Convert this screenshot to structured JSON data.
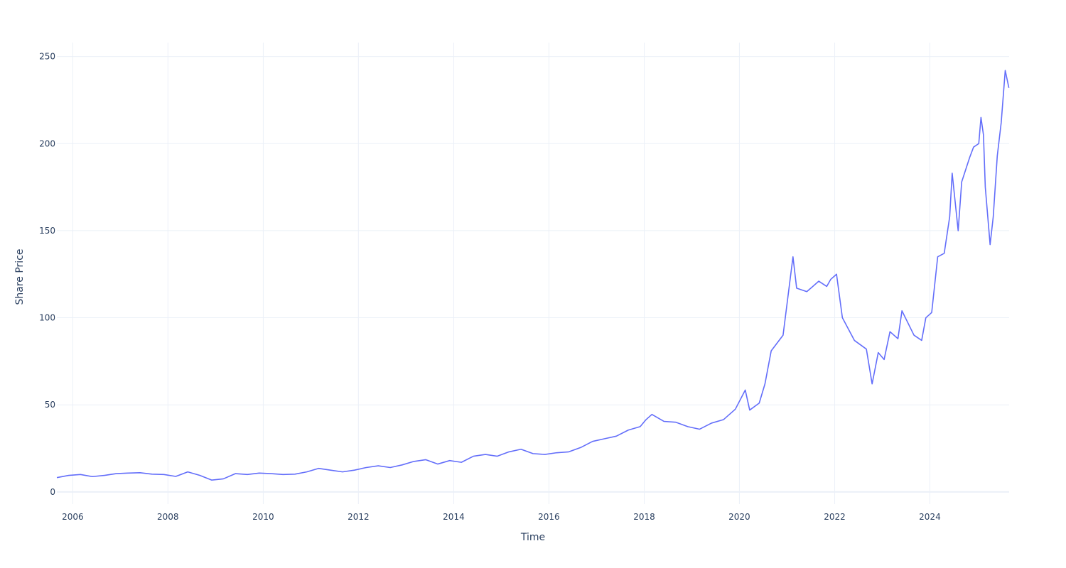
{
  "chart_data": {
    "type": "line",
    "title": "",
    "xlabel": "Time",
    "ylabel": "Share Price",
    "xlim": [
      "2005-09-01",
      "2025-08-31"
    ],
    "ylim": [
      -7,
      258
    ],
    "x_ticks": [
      "2006",
      "2008",
      "2010",
      "2012",
      "2014",
      "2016",
      "2018",
      "2020",
      "2022",
      "2024"
    ],
    "y_ticks": [
      0,
      50,
      100,
      150,
      200,
      250
    ],
    "grid": true,
    "line_color": "#636efa",
    "grid_color": "#ebf0f8",
    "text_color": "#2a3f5f",
    "series": [
      {
        "x": [
          "2005-09-01",
          "2005-12-01",
          "2006-03-01",
          "2006-06-01",
          "2006-09-01",
          "2006-12-01",
          "2007-03-01",
          "2007-06-01",
          "2007-09-01",
          "2007-12-01",
          "2008-03-01",
          "2008-06-01",
          "2008-09-01",
          "2008-12-01",
          "2009-03-01",
          "2009-06-01",
          "2009-09-01",
          "2009-12-01",
          "2010-03-01",
          "2010-06-01",
          "2010-09-01",
          "2010-12-01",
          "2011-03-01",
          "2011-06-01",
          "2011-09-01",
          "2011-12-01",
          "2012-03-01",
          "2012-06-01",
          "2012-09-01",
          "2012-12-01",
          "2013-03-01",
          "2013-06-01",
          "2013-09-01",
          "2013-12-01",
          "2014-03-01",
          "2014-06-01",
          "2014-09-01",
          "2014-12-01",
          "2015-03-01",
          "2015-06-01",
          "2015-09-01",
          "2015-12-01",
          "2016-03-01",
          "2016-06-01",
          "2016-09-01",
          "2016-12-01",
          "2017-03-01",
          "2017-06-01",
          "2017-09-01",
          "2017-12-01",
          "2018-01-15",
          "2018-03-01",
          "2018-06-01",
          "2018-09-01",
          "2018-12-01",
          "2019-03-01",
          "2019-06-01",
          "2019-09-01",
          "2019-12-01",
          "2020-02-15",
          "2020-03-20",
          "2020-06-01",
          "2020-07-15",
          "2020-09-01",
          "2020-12-01",
          "2021-02-15",
          "2021-03-15",
          "2021-06-01",
          "2021-09-01",
          "2021-11-01",
          "2021-12-01",
          "2022-01-15",
          "2022-03-01",
          "2022-06-01",
          "2022-09-01",
          "2022-10-15",
          "2022-12-01",
          "2023-01-15",
          "2023-03-01",
          "2023-05-01",
          "2023-06-01",
          "2023-09-01",
          "2023-10-30",
          "2023-12-01",
          "2024-01-15",
          "2024-03-01",
          "2024-04-20",
          "2024-06-01",
          "2024-06-20",
          "2024-08-05",
          "2024-09-01",
          "2024-11-01",
          "2024-12-01",
          "2025-01-10",
          "2025-01-27",
          "2025-02-15",
          "2025-03-01",
          "2025-04-07",
          "2025-05-01",
          "2025-06-01",
          "2025-07-01",
          "2025-08-01",
          "2025-08-29"
        ],
        "y": [
          8.2,
          9.5,
          10.0,
          8.8,
          9.5,
          10.5,
          10.8,
          11.0,
          10.2,
          10.0,
          8.9,
          11.5,
          9.5,
          6.8,
          7.5,
          10.5,
          10.0,
          10.8,
          10.5,
          10.0,
          10.2,
          11.5,
          13.5,
          12.5,
          11.5,
          12.5,
          14.0,
          15.0,
          14.0,
          15.5,
          17.5,
          18.5,
          16.0,
          18.0,
          17.0,
          20.5,
          21.5,
          20.5,
          23.0,
          24.5,
          22.0,
          21.5,
          22.5,
          23.0,
          25.5,
          29.0,
          30.5,
          32.0,
          35.5,
          37.5,
          41.5,
          44.5,
          40.5,
          40.0,
          37.5,
          36.0,
          39.5,
          41.5,
          47.5,
          58.5,
          47.0,
          51.0,
          62.0,
          81.0,
          90.0,
          135.0,
          117.0,
          115.0,
          121.0,
          118.0,
          122.0,
          125.0,
          100.0,
          87.0,
          82.0,
          62.0,
          80.0,
          76.0,
          92.0,
          88.0,
          104.0,
          90.0,
          87.0,
          100.0,
          103.0,
          135.0,
          137.0,
          158.0,
          183.0,
          150.0,
          178.0,
          192.0,
          198.0,
          200.0,
          215.0,
          205.0,
          175.0,
          142.0,
          158.0,
          193.0,
          212.0,
          242.0,
          232.0
        ]
      }
    ]
  }
}
